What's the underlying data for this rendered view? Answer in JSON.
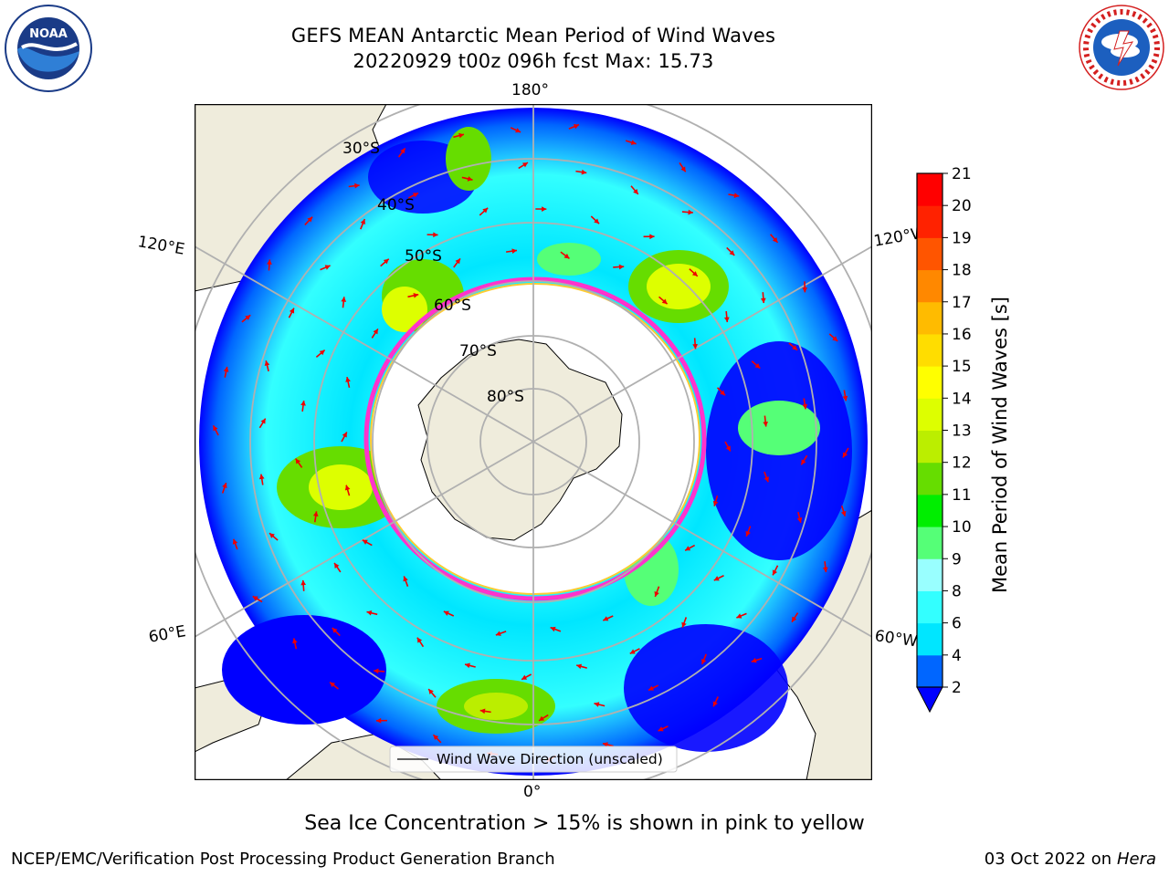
{
  "title": {
    "line1": "GEFS MEAN Antarctic Mean Period of Wind Waves",
    "line2": "20220929 t00z 096h fcst   Max: 15.73"
  },
  "logos": {
    "left": {
      "icon": "noaa-logo",
      "text": "NOAA",
      "ring_text": "NATIONAL OCEANIC AND ATMOSPHERIC ADMINISTRATION · U.S. DEPARTMENT OF COMMERCE"
    },
    "right": {
      "icon": "nws-logo",
      "ring_text": "NATIONAL WEATHER SERVICE"
    }
  },
  "map": {
    "projection": "south-polar-stereographic",
    "meridian_labels": {
      "top": "180°",
      "bottom": "0°",
      "upper_left": "120°E",
      "upper_right": "120°W",
      "lower_left": "60°E",
      "lower_right": "60°W"
    },
    "parallel_labels": [
      "30°S",
      "40°S",
      "50°S",
      "60°S",
      "70°S",
      "80°S"
    ],
    "legend_label": "Wind Wave Direction (unscaled)",
    "colors": {
      "land": "#efecdc",
      "ice_edge": "#ff33cc",
      "ice_inner": "#ffcc33",
      "arrow": "#ee0000",
      "grid": "#b0b0b0"
    }
  },
  "colorbar": {
    "label": "Mean Period of Wind Waves [s]",
    "ticks": [
      "2",
      "4",
      "6",
      "8",
      "9",
      "10",
      "11",
      "12",
      "13",
      "14",
      "15",
      "16",
      "17",
      "18",
      "19",
      "20",
      "21"
    ],
    "colors": [
      "#0000ff",
      "#0066ff",
      "#00e6ff",
      "#33ffff",
      "#99ffff",
      "#55ff77",
      "#00ee00",
      "#66dd00",
      "#bbee00",
      "#ddff00",
      "#ffff00",
      "#ffdd00",
      "#ffbb00",
      "#ff8800",
      "#ff5500",
      "#ff2200",
      "#ff0000"
    ],
    "extend_color": "#0000ff"
  },
  "note": "Sea Ice Concentration > 15% is shown in pink to yellow",
  "footer": {
    "left": "NCEP/EMC/Verification Post Processing Product Generation Branch",
    "right_date": "03 Oct 2022 on ",
    "right_machine": "Hera"
  }
}
